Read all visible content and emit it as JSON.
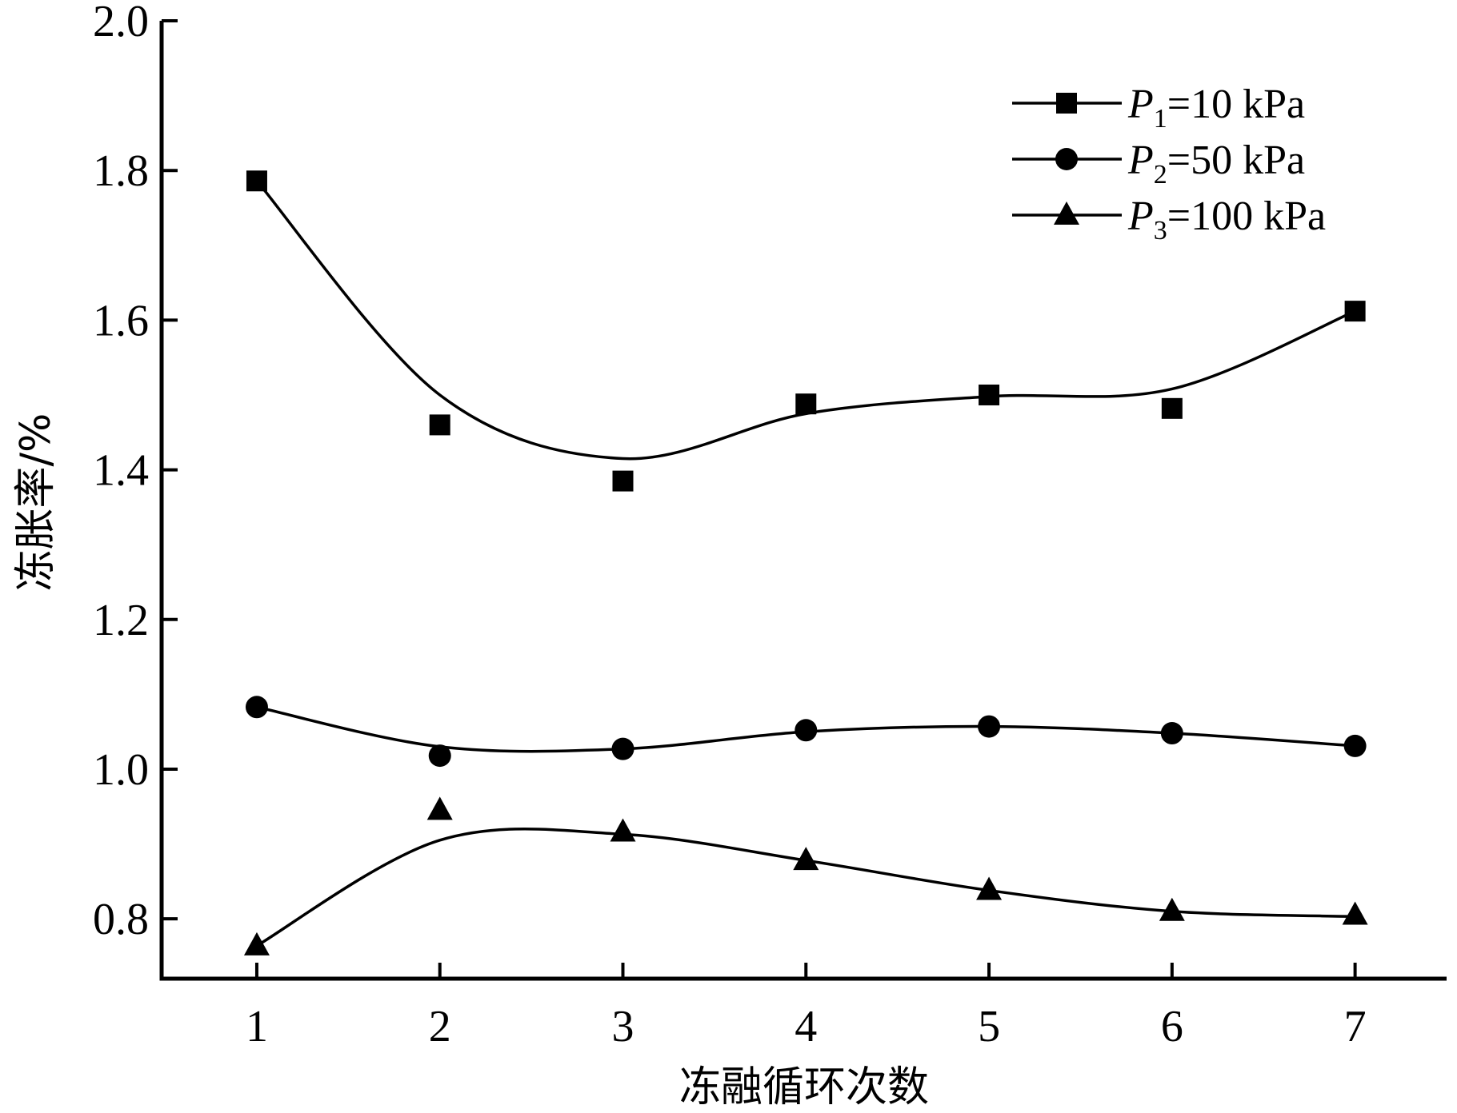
{
  "chart_data": {
    "type": "scatter",
    "xlabel": "冻融循环次数",
    "ylabel": "冻胀率/%",
    "x": [
      1,
      2,
      3,
      4,
      5,
      6,
      7
    ],
    "xticks": [
      "1",
      "2",
      "3",
      "4",
      "5",
      "6",
      "7"
    ],
    "xlim": [
      0.48,
      7.5
    ],
    "ylim": [
      0.72,
      2.0
    ],
    "yticks": [
      "0.8",
      "1.0",
      "1.2",
      "1.4",
      "1.6",
      "1.8",
      "2.0"
    ],
    "ytick_values": [
      0.8,
      1.0,
      1.2,
      1.4,
      1.6,
      1.8,
      2.0
    ],
    "grid": false,
    "legend_position": "top-right",
    "series": [
      {
        "name": "P1=10 kPa",
        "legend_symbol": "P",
        "legend_subscript": "1",
        "legend_rest": "=10 kPa",
        "marker": "square",
        "values": [
          1.786,
          1.46,
          1.385,
          1.488,
          1.5,
          1.482,
          1.612
        ],
        "fit": [
          1.786,
          1.5,
          1.415,
          1.475,
          1.498,
          1.508,
          1.612
        ]
      },
      {
        "name": "P2=50 kPa",
        "legend_symbol": "P",
        "legend_subscript": "2",
        "legend_rest": "=50 kPa",
        "marker": "circle",
        "values": [
          1.083,
          1.018,
          1.027,
          1.052,
          1.057,
          1.048,
          1.031
        ],
        "fit": [
          1.083,
          1.03,
          1.027,
          1.05,
          1.057,
          1.048,
          1.031
        ]
      },
      {
        "name": "P3=100 kPa",
        "legend_symbol": "P",
        "legend_subscript": "3",
        "legend_rest": "=100 kPa",
        "marker": "triangle",
        "values": [
          0.764,
          0.945,
          0.916,
          0.878,
          0.838,
          0.81,
          0.805
        ],
        "fit": [
          0.764,
          0.905,
          0.913,
          0.878,
          0.838,
          0.81,
          0.803
        ]
      }
    ]
  }
}
